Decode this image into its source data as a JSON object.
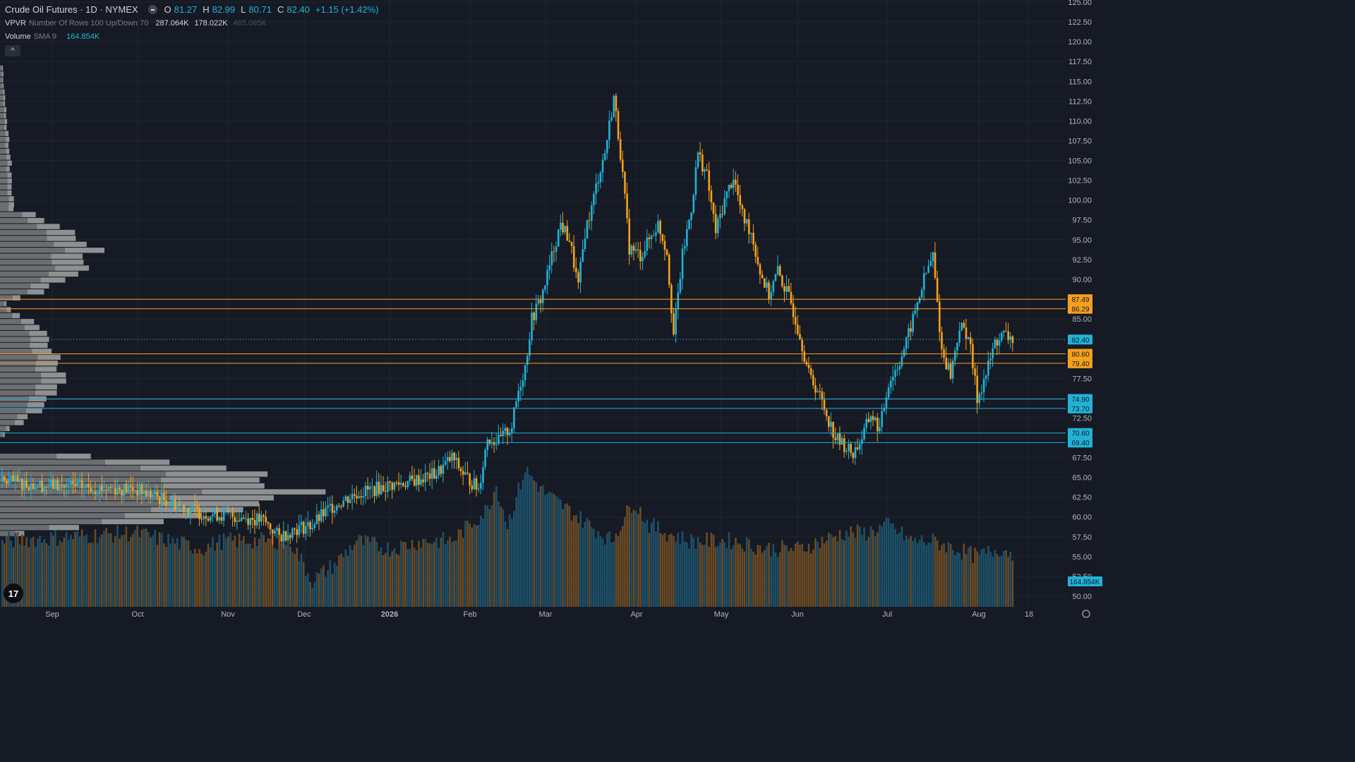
{
  "header": {
    "symbol": "Crude Oil Futures · 1D · NYMEX",
    "ohlc": {
      "o_label": "O",
      "o": "81.27",
      "h_label": "H",
      "h": "82.99",
      "l_label": "L",
      "l": "80.71",
      "c_label": "C",
      "c": "82.40",
      "change": "+1.15 (+1.42%)"
    },
    "vpvr": {
      "label": "VPVR",
      "params": "Number Of Rows 100 Up/Down 70",
      "up": "287.064K",
      "down": "178.022K",
      "total": "465.085K"
    },
    "volume": {
      "label": "Volume",
      "params": "SMA 9",
      "value": "164.854K"
    },
    "collapse_icon": "chevron-up-icon"
  },
  "colors": {
    "background": "#161a25",
    "up": "#22b2d6",
    "down": "#f5a11c",
    "grid": "#1f2430",
    "vpvr_up": "#6b6d70",
    "vpvr_down": "#8e9092",
    "level_orange": "#f5a11c",
    "level_cyan": "#22b2d6"
  },
  "chart_data": {
    "type": "candlestick",
    "y_axis": {
      "min": 50,
      "max": 125,
      "ticks": [
        "50.00",
        "52.50",
        "55.00",
        "57.50",
        "60.00",
        "62.50",
        "65.00",
        "67.50",
        "70.00",
        "72.50",
        "75.00",
        "77.50",
        "80.00",
        "82.50",
        "85.00",
        "87.50",
        "90.00",
        "92.50",
        "95.00",
        "97.50",
        "100.00",
        "102.50",
        "105.00",
        "107.50",
        "110.00",
        "112.50",
        "115.00",
        "117.50",
        "120.00",
        "122.50",
        "125.00"
      ]
    },
    "x_axis": {
      "labels": [
        "Sep",
        "Oct",
        "Nov",
        "Dec",
        "2026",
        "Feb",
        "Mar",
        "Apr",
        "May",
        "Jun",
        "Jul",
        "Aug",
        "18"
      ]
    },
    "last_price": "82.40",
    "last_volume": "164.854K",
    "levels": [
      {
        "value": 87.49,
        "label": "87.49",
        "color": "orange"
      },
      {
        "value": 86.29,
        "label": "86.29",
        "color": "orange"
      },
      {
        "value": 80.6,
        "label": "80.60",
        "color": "orange"
      },
      {
        "value": 79.4,
        "label": "79.40",
        "color": "orange"
      },
      {
        "value": 74.9,
        "label": "74.90",
        "color": "cyan"
      },
      {
        "value": 73.7,
        "label": "73.70",
        "color": "cyan"
      },
      {
        "value": 70.6,
        "label": "70.60",
        "color": "cyan"
      },
      {
        "value": 69.4,
        "label": "69.40",
        "color": "cyan"
      }
    ],
    "price_waypoints": [
      [
        0,
        64.5
      ],
      [
        20,
        64
      ],
      [
        60,
        63.5
      ],
      [
        90,
        60.5
      ],
      [
        108,
        60
      ],
      [
        118,
        59.5
      ],
      [
        125,
        57.5
      ],
      [
        132,
        58.5
      ],
      [
        140,
        59
      ],
      [
        148,
        61.2
      ],
      [
        160,
        63
      ],
      [
        175,
        64
      ],
      [
        185,
        64.5
      ],
      [
        196,
        65.5
      ],
      [
        203,
        67.5
      ],
      [
        208,
        65.5
      ],
      [
        215,
        63.5
      ],
      [
        219,
        70
      ],
      [
        224,
        69.5
      ],
      [
        230,
        71.5
      ],
      [
        233,
        76
      ],
      [
        236,
        79
      ],
      [
        239,
        85
      ],
      [
        243,
        87.5
      ],
      [
        246,
        90.5
      ],
      [
        249,
        94
      ],
      [
        252,
        97
      ],
      [
        256,
        95
      ],
      [
        260,
        89
      ],
      [
        263,
        96
      ],
      [
        266,
        99
      ],
      [
        269,
        103
      ],
      [
        272,
        106
      ],
      [
        276,
        113
      ],
      [
        279,
        106
      ],
      [
        283,
        94
      ],
      [
        288,
        93
      ],
      [
        292,
        95
      ],
      [
        296,
        97
      ],
      [
        300,
        93.5
      ],
      [
        303,
        83
      ],
      [
        307,
        93
      ],
      [
        311,
        99
      ],
      [
        314,
        106
      ],
      [
        318,
        103
      ],
      [
        322,
        96
      ],
      [
        326,
        100
      ],
      [
        330,
        103
      ],
      [
        334,
        98
      ],
      [
        338,
        96
      ],
      [
        342,
        91
      ],
      [
        346,
        88
      ],
      [
        350,
        91
      ],
      [
        353,
        89
      ],
      [
        356,
        87
      ],
      [
        360,
        83
      ],
      [
        364,
        78
      ],
      [
        368,
        76
      ],
      [
        372,
        73
      ],
      [
        376,
        70
      ],
      [
        380,
        69
      ],
      [
        384,
        68
      ],
      [
        388,
        70
      ],
      [
        392,
        73
      ],
      [
        396,
        71
      ],
      [
        400,
        77
      ],
      [
        404,
        79
      ],
      [
        408,
        82
      ],
      [
        412,
        86
      ],
      [
        416,
        90
      ],
      [
        420,
        93
      ],
      [
        424,
        81
      ],
      [
        428,
        78
      ],
      [
        432,
        84
      ],
      [
        436,
        83
      ],
      [
        440,
        75
      ],
      [
        444,
        78
      ],
      [
        448,
        82
      ],
      [
        452,
        83
      ],
      [
        456,
        82.4
      ]
    ],
    "volume_waypoints": [
      [
        0,
        57
      ],
      [
        60,
        58
      ],
      [
        90,
        56
      ],
      [
        100,
        57
      ],
      [
        130,
        57
      ],
      [
        140,
        52
      ],
      [
        150,
        54
      ],
      [
        160,
        57
      ],
      [
        175,
        56
      ],
      [
        190,
        57
      ],
      [
        203,
        57
      ],
      [
        215,
        60
      ],
      [
        219,
        61
      ],
      [
        223,
        64
      ],
      [
        228,
        59
      ],
      [
        236,
        66
      ],
      [
        245,
        63
      ],
      [
        260,
        60
      ],
      [
        275,
        57
      ],
      [
        285,
        62
      ],
      [
        292,
        59
      ],
      [
        300,
        58
      ],
      [
        310,
        57
      ],
      [
        330,
        57
      ],
      [
        345,
        56
      ],
      [
        360,
        56
      ],
      [
        380,
        58
      ],
      [
        390,
        58
      ],
      [
        400,
        59
      ],
      [
        410,
        57
      ],
      [
        420,
        57
      ],
      [
        430,
        56
      ],
      [
        440,
        55
      ],
      [
        450,
        56
      ],
      [
        456,
        55.5
      ]
    ],
    "vpvr_profile": [
      {
        "from": 99.0,
        "to": 117.0,
        "peak": 20,
        "shape": "ramp"
      },
      {
        "from": 86.5,
        "to": 99.0,
        "peak": 130,
        "shape": "bell"
      },
      {
        "from": 70.0,
        "to": 86.5,
        "peak": 90,
        "shape": "bell"
      },
      {
        "from": 57.5,
        "to": 68.0,
        "peak": 430,
        "shape": "bell"
      }
    ]
  }
}
